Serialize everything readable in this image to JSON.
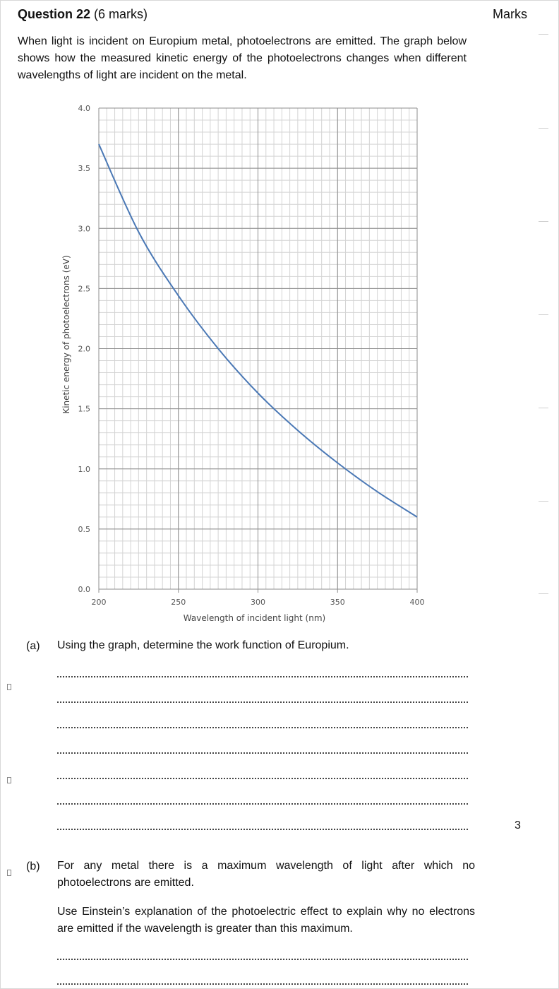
{
  "question": {
    "title": "Question 22",
    "marks_text": "(6 marks)",
    "marks_column_header": "Marks",
    "intro": "When light is incident on Europium metal, photoelectrons are emitted. The graph below shows how the measured kinetic energy of the photoelectrons changes when different wavelengths of light are incident on the metal."
  },
  "chart_data": {
    "type": "line",
    "xlabel": "Wavelength of incident light (nm)",
    "ylabel": "Kinetic energy of photoelectrons (eV)",
    "xlim": [
      200,
      400
    ],
    "ylim": [
      0,
      4.0
    ],
    "xticks": [
      "200",
      "250",
      "300",
      "350",
      "400"
    ],
    "yticks": [
      "0.0",
      "0.5",
      "1.0",
      "1.5",
      "2.0",
      "2.5",
      "3.0",
      "3.5",
      "4.0"
    ],
    "grid": true,
    "line_color": "#4a78b5",
    "x": [
      200,
      225,
      250,
      275,
      300,
      325,
      350,
      375,
      400
    ],
    "y": [
      3.7,
      2.97,
      2.44,
      2.0,
      1.63,
      1.32,
      1.05,
      0.81,
      0.6
    ]
  },
  "part_a": {
    "label": "(a)",
    "text": "Using the graph, determine the work function of Europium.",
    "marks": "3"
  },
  "part_b": {
    "label": "(b)",
    "text1": "For any metal there is a maximum wavelength of light after which no photoelectrons are emitted.",
    "text2": "Use Einstein’s explanation of the photoelectric effect to explain why no electrons are emitted if the wavelength is greater than this maximum."
  }
}
